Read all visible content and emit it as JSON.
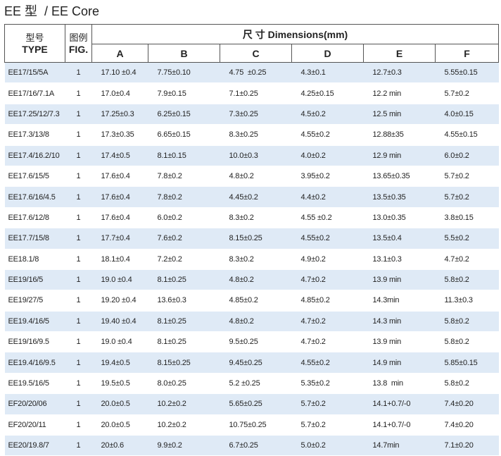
{
  "title": "EE 型  / EE Core",
  "header": {
    "type_cn": "型号",
    "fig_cn": "图例",
    "dimensions": "尺 寸 Dimensions(mm)",
    "type": "TYPE",
    "fig": "FIG.",
    "columns": [
      "A",
      "B",
      "C",
      "D",
      "E",
      "F"
    ]
  },
  "rows": [
    [
      "EE17/15/5A",
      "1",
      "17.10 ±0.4",
      "7.75±0.10",
      "4.75  ±0.25",
      "4.3±0.1",
      "12.7±0.3",
      "5.55±0.15"
    ],
    [
      "EE17/16/7.1A",
      "1",
      "17.0±0.4",
      "7.9±0.15",
      "7.1±0.25",
      "4.25±0.15",
      "12.2 min",
      "5.7±0.2"
    ],
    [
      "EE17.25/12/7.3",
      "1",
      "17.25±0.3",
      "6.25±0.15",
      "7.3±0.25",
      "4.5±0.2",
      "12.5 min",
      "4.0±0.15"
    ],
    [
      "EE17.3/13/8",
      "1",
      "17.3±0.35",
      "6.65±0.15",
      "8.3±0.25",
      "4.55±0.2",
      "12.88±35",
      "4.55±0.15"
    ],
    [
      "EE17.4/16.2/10",
      "1",
      "17.4±0.5",
      "8.1±0.15",
      "10.0±0.3",
      "4.0±0.2",
      "12.9 min",
      "6.0±0.2"
    ],
    [
      "EE17.6/15/5",
      "1",
      "17.6±0.4",
      "7.8±0.2",
      "4.8±0.2",
      "3.95±0.2",
      "13.65±0.35",
      "5.7±0.2"
    ],
    [
      "EE17.6/16/4.5",
      "1",
      "17.6±0.4",
      "7.8±0.2",
      "4.45±0.2",
      "4.4±0.2",
      "13.5±0.35",
      "5.7±0.2"
    ],
    [
      "EE17.6/12/8",
      "1",
      "17.6±0.4",
      "6.0±0.2",
      "8.3±0.2",
      "4.55 ±0.2",
      "13.0±0.35",
      "3.8±0.15"
    ],
    [
      "EE17.7/15/8",
      "1",
      "17.7±0.4",
      "7.6±0.2",
      "8.15±0.25",
      "4.55±0.2",
      "13.5±0.4",
      "5.5±0.2"
    ],
    [
      "EE18.1/8",
      "1",
      "18.1±0.4",
      "7.2±0.2",
      "8.3±0.2",
      "4.9±0.2",
      "13.1±0.3",
      "4.7±0.2"
    ],
    [
      "EE19/16/5",
      "1",
      "19.0 ±0.4",
      "8.1±0.25",
      "4.8±0.2",
      "4.7±0.2",
      "13.9 min",
      "5.8±0.2"
    ],
    [
      "EE19/27/5",
      "1",
      "19.20 ±0.4",
      "13.6±0.3",
      "4.85±0.2",
      "4.85±0.2",
      "14.3min",
      "11.3±0.3"
    ],
    [
      "EE19.4/16/5",
      "1",
      "19.40 ±0.4",
      "8.1±0.25",
      "4.8±0.2",
      "4.7±0.2",
      "14.3 min",
      "5.8±0.2"
    ],
    [
      "EE19/16/9.5",
      "1",
      "19.0 ±0.4",
      "8.1±0.25",
      "9.5±0.25",
      "4.7±0.2",
      "13.9 min",
      "5.8±0.2"
    ],
    [
      "EE19.4/16/9.5",
      "1",
      "19.4±0.5",
      "8.15±0.25",
      "9.45±0.25",
      "4.55±0.2",
      "14.9 min",
      "5.85±0.15"
    ],
    [
      "EE19.5/16/5",
      "1",
      "19.5±0.5",
      "8.0±0.25",
      "5.2 ±0.25",
      "5.35±0.2",
      "13.8  min",
      "5.8±0.2"
    ],
    [
      "EF20/20/06",
      "1",
      "20.0±0.5",
      "10.2±0.2",
      "5.65±0.25",
      "5.7±0.2",
      "14.1+0.7/-0",
      "7.4±0.20"
    ],
    [
      "EF20/20/11",
      "1",
      "20.0±0.5",
      "10.2±0.2",
      "10.75±0.25",
      "5.7±0.2",
      "14.1+0.7/-0",
      "7.4±0.20"
    ],
    [
      "EE20/19.8/7",
      "1",
      "20±0.6",
      "9.9±0.2",
      "6.7±0.25",
      "5.0±0.2",
      "14.7min",
      "7.1±0.20"
    ]
  ]
}
